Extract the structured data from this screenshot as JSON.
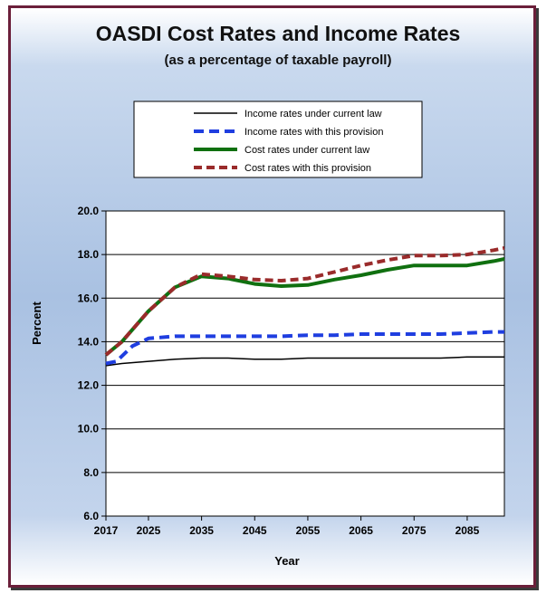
{
  "chart_data": {
    "type": "line",
    "title": "OASDI Cost Rates and Income Rates",
    "subtitle": "(as a percentage of taxable payroll)",
    "xlabel": "Year",
    "ylabel": "Percent",
    "xlim": [
      2017,
      2092
    ],
    "ylim": [
      6.0,
      20.0
    ],
    "x_ticks": [
      2017,
      2025,
      2035,
      2045,
      2055,
      2065,
      2075,
      2085
    ],
    "y_ticks": [
      "6.0",
      "8.0",
      "10.0",
      "12.0",
      "14.0",
      "16.0",
      "18.0",
      "20.0"
    ],
    "grid": "horizontal",
    "legend_position": "top",
    "series": [
      {
        "name": "Income rates under current law",
        "color": "#000000",
        "style": "solid-thin",
        "x": [
          2017,
          2020,
          2025,
          2030,
          2035,
          2040,
          2045,
          2050,
          2055,
          2060,
          2065,
          2070,
          2075,
          2080,
          2085,
          2090,
          2092
        ],
        "y": [
          12.9,
          13.0,
          13.1,
          13.2,
          13.25,
          13.25,
          13.2,
          13.2,
          13.25,
          13.25,
          13.25,
          13.25,
          13.25,
          13.25,
          13.3,
          13.3,
          13.3
        ]
      },
      {
        "name": "Income rates with this provision",
        "color": "#1f3ee0",
        "style": "dashed",
        "x": [
          2017,
          2019,
          2022,
          2025,
          2030,
          2035,
          2040,
          2045,
          2050,
          2055,
          2060,
          2065,
          2070,
          2075,
          2080,
          2085,
          2090,
          2092
        ],
        "y": [
          13.0,
          13.1,
          13.8,
          14.15,
          14.25,
          14.25,
          14.25,
          14.25,
          14.25,
          14.3,
          14.3,
          14.35,
          14.35,
          14.35,
          14.35,
          14.4,
          14.45,
          14.45
        ]
      },
      {
        "name": "Cost rates under current law",
        "color": "#107010",
        "style": "solid-thick",
        "x": [
          2017,
          2020,
          2025,
          2030,
          2035,
          2040,
          2045,
          2050,
          2055,
          2060,
          2065,
          2070,
          2075,
          2080,
          2085,
          2090,
          2092
        ],
        "y": [
          13.4,
          14.0,
          15.4,
          16.5,
          17.0,
          16.9,
          16.65,
          16.55,
          16.6,
          16.85,
          17.05,
          17.3,
          17.5,
          17.5,
          17.5,
          17.7,
          17.8
        ]
      },
      {
        "name": "Cost rates with this provision",
        "color": "#9a2b2b",
        "style": "dashed-thick",
        "x": [
          2017,
          2020,
          2025,
          2030,
          2035,
          2040,
          2045,
          2050,
          2055,
          2060,
          2065,
          2070,
          2075,
          2080,
          2085,
          2090,
          2092
        ],
        "y": [
          13.4,
          14.0,
          15.4,
          16.5,
          17.1,
          17.0,
          16.85,
          16.8,
          16.9,
          17.2,
          17.5,
          17.75,
          17.95,
          17.95,
          18.0,
          18.2,
          18.3
        ]
      }
    ]
  }
}
